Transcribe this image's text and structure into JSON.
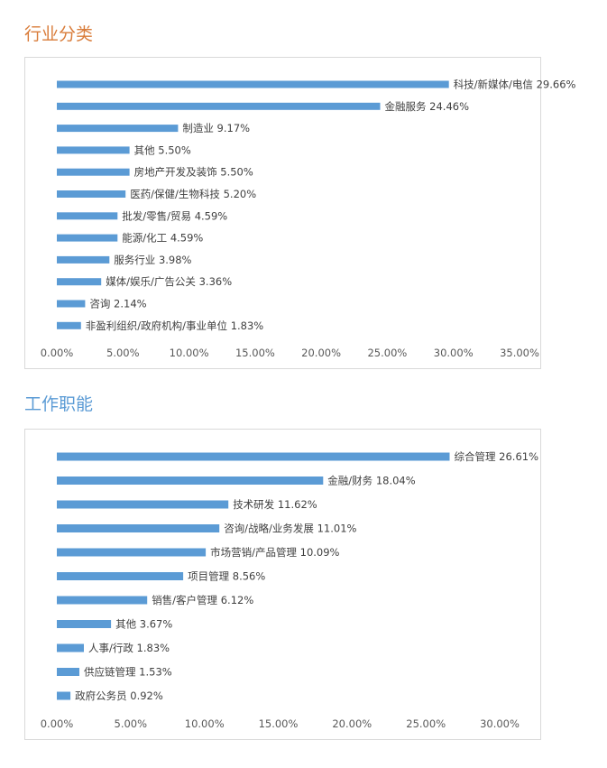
{
  "sections": [
    {
      "title": "行业分类",
      "title_color": "#d97c3a"
    },
    {
      "title": "工作职能",
      "title_color": "#5b9bd5"
    }
  ],
  "bar_color": "#5b9bd5",
  "chart_data": [
    {
      "type": "bar",
      "orientation": "horizontal",
      "categories": [
        "科技/新媒体/电信",
        "金融服务",
        "制造业",
        "其他",
        "房地产开发及装饰",
        "医药/保健/生物科技",
        "批发/零售/贸易",
        "能源/化工",
        "服务行业",
        "媒体/娱乐/广告公关",
        "咨询",
        "非盈利组织/政府机构/事业单位"
      ],
      "values": [
        29.66,
        24.46,
        9.17,
        5.5,
        5.5,
        5.2,
        4.59,
        4.59,
        3.98,
        3.36,
        2.14,
        1.83
      ],
      "data_labels": [
        "科技/新媒体/电信 29.66%",
        "金融服务 24.46%",
        "制造业 9.17%",
        "其他 5.50%",
        "房地产开发及装饰 5.50%",
        "医药/保健/生物科技 5.20%",
        "批发/零售/贸易 4.59%",
        "能源/化工 4.59%",
        "服务行业 3.98%",
        "媒体/娱乐/广告公关 3.36%",
        "咨询 2.14%",
        "非盈利组织/政府机构/事业单位 1.83%"
      ],
      "xlim": [
        0,
        35
      ],
      "xticks": [
        "0.00%",
        "5.00%",
        "10.00%",
        "15.00%",
        "20.00%",
        "25.00%",
        "30.00%",
        "35.00%"
      ],
      "grid": false,
      "legend": "none"
    },
    {
      "type": "bar",
      "orientation": "horizontal",
      "categories": [
        "综合管理",
        "金融/财务",
        "技术研发",
        "咨询/战略/业务发展",
        "市场营销/产品管理",
        "项目管理",
        "销售/客户管理",
        "其他",
        "人事/行政",
        "供应链管理",
        "政府公务员"
      ],
      "values": [
        26.61,
        18.04,
        11.62,
        11.01,
        10.09,
        8.56,
        6.12,
        3.67,
        1.83,
        1.53,
        0.92
      ],
      "data_labels": [
        "综合管理 26.61%",
        "金融/财务 18.04%",
        "技术研发 11.62%",
        "咨询/战略/业务发展 11.01%",
        "市场营销/产品管理 10.09%",
        "项目管理 8.56%",
        "销售/客户管理 6.12%",
        "其他 3.67%",
        "人事/行政 1.83%",
        "供应链管理 1.53%",
        "政府公务员 0.92%"
      ],
      "xlim": [
        0,
        30
      ],
      "xticks": [
        "0.00%",
        "5.00%",
        "10.00%",
        "15.00%",
        "20.00%",
        "25.00%",
        "30.00%"
      ],
      "grid": false,
      "legend": "none"
    }
  ]
}
